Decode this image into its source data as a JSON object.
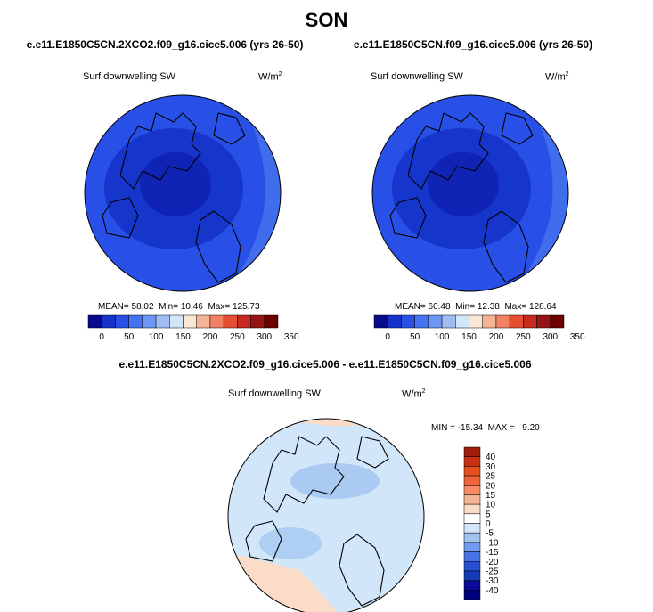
{
  "figure": {
    "title": "SON"
  },
  "chart_data": [
    {
      "type": "heatmap",
      "title": "e.e11.E1850C5CN.2XCO2.f09_g16.cice5.006 (yrs 26-50)",
      "variable": "Surf downwelling SW",
      "units": "W/m",
      "units_exp": "2",
      "stats": {
        "mean_label": "MEAN=",
        "mean": "58.02",
        "min_label": "Min=",
        "min": "10.46",
        "max_label": "Max=",
        "max": "125.73"
      },
      "colorbar": {
        "orientation": "horizontal",
        "ticks": [
          "0",
          "50",
          "100",
          "150",
          "200",
          "250",
          "300",
          "350"
        ],
        "colors": [
          "#0a0a8c",
          "#1432c8",
          "#2850e6",
          "#4673f0",
          "#6e96f5",
          "#a0bef5",
          "#d2e6fa",
          "#fae6d2",
          "#f5b496",
          "#f08264",
          "#e65032",
          "#c8281e",
          "#961414",
          "#6e0000"
        ]
      },
      "projection": "north polar stereographic",
      "regions_colors": [
        "#2850e6",
        "#1432c8",
        "#4673f0"
      ]
    },
    {
      "type": "heatmap",
      "title": "e.e11.E1850C5CN.f09_g16.cice5.006 (yrs 26-50)",
      "variable": "Surf downwelling SW",
      "units": "W/m",
      "units_exp": "2",
      "stats": {
        "mean_label": "MEAN=",
        "mean": "60.48",
        "min_label": "Min=",
        "min": "12.38",
        "max_label": "Max=",
        "max": "128.64"
      },
      "colorbar": {
        "orientation": "horizontal",
        "ticks": [
          "0",
          "50",
          "100",
          "150",
          "200",
          "250",
          "300",
          "350"
        ],
        "colors": [
          "#0a0a8c",
          "#1432c8",
          "#2850e6",
          "#4673f0",
          "#6e96f5",
          "#a0bef5",
          "#d2e6fa",
          "#fae6d2",
          "#f5b496",
          "#f08264",
          "#e65032",
          "#c8281e",
          "#961414",
          "#6e0000"
        ]
      },
      "projection": "north polar stereographic",
      "regions_colors": [
        "#2850e6",
        "#1432c8",
        "#4673f0"
      ]
    },
    {
      "type": "heatmap",
      "title": "e.e11.E1850C5CN.2XCO2.f09_g16.cice5.006 - e.e11.E1850C5CN.f09_g16.cice5.006",
      "variable": "Surf downwelling SW",
      "units": "W/m",
      "units_exp": "2",
      "stats": {
        "text": "MIN = -15.34  MAX =   9.20"
      },
      "colorbar": {
        "orientation": "vertical",
        "ticks": [
          "40",
          "30",
          "25",
          "20",
          "15",
          "10",
          "5",
          "0",
          "-5",
          "-10",
          "-15",
          "-20",
          "-25",
          "-30",
          "-40"
        ],
        "colors": [
          "#a01e0a",
          "#c83214",
          "#e6501e",
          "#f0643c",
          "#f58c64",
          "#f5b496",
          "#fadcc8",
          "#ffffff",
          "#d2e6fa",
          "#a0c3f0",
          "#6e9bf0",
          "#4673e6",
          "#2850d2",
          "#143cb4",
          "#0a0a96",
          "#00007d"
        ]
      },
      "projection": "north polar stereographic",
      "regions_colors": [
        "#d2e6fa",
        "#a0c3f0",
        "#fadcc8"
      ]
    }
  ]
}
